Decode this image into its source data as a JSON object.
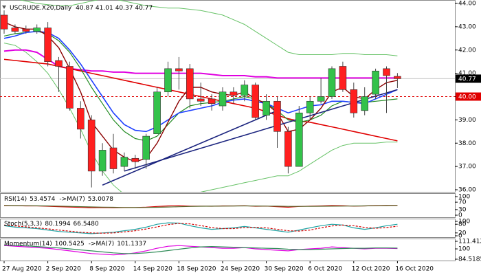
{
  "chart_data": [
    {
      "type": "candlestick",
      "title": "USCRUDE.X20,Daily",
      "categories": [
        "27 Aug 2020",
        null,
        null,
        null,
        "2 Sep 2020",
        null,
        null,
        null,
        "8 Sep 2020",
        null,
        null,
        null,
        "14 Sep 2020",
        null,
        null,
        null,
        "18 Sep 2020",
        null,
        null,
        null,
        "24 Sep 2020",
        null,
        null,
        null,
        "30 Sep 2020",
        null,
        null,
        null,
        "6 Oct 2020",
        null,
        null,
        null,
        "12 Oct 2020",
        null,
        null,
        null,
        "16 Oct 2020"
      ],
      "open": [
        43.5,
        42.95,
        42.9,
        42.8,
        42.95,
        41.55,
        41.3,
        39.5,
        39.0,
        36.8,
        37.8,
        37.0,
        37.35,
        37.3,
        38.4,
        40.2,
        41.2,
        41.2,
        39.9,
        39.9,
        39.6,
        40.2,
        40.05,
        40.5,
        39.2,
        39.8,
        38.5,
        37.0,
        39.3,
        39.8,
        40.0,
        41.3,
        40.3,
        39.4,
        40.1,
        41.2,
        40.87
      ],
      "high": [
        43.7,
        43.1,
        43.05,
        43.1,
        43.2,
        41.7,
        41.5,
        39.8,
        39.2,
        38.0,
        38.4,
        37.6,
        37.5,
        38.4,
        40.4,
        41.5,
        41.7,
        41.4,
        40.6,
        40.1,
        40.4,
        40.4,
        40.7,
        40.6,
        40.1,
        40.0,
        38.7,
        39.6,
        40.0,
        40.8,
        41.3,
        41.5,
        40.6,
        40.4,
        41.2,
        41.3,
        41.01
      ],
      "low": [
        42.7,
        42.7,
        42.7,
        42.7,
        41.3,
        40.2,
        39.4,
        38.2,
        36.1,
        36.6,
        36.7,
        36.8,
        36.9,
        36.9,
        38.4,
        40.0,
        40.3,
        39.5,
        39.6,
        39.4,
        39.4,
        39.7,
        39.8,
        39.0,
        39.0,
        37.8,
        36.7,
        37.0,
        39.0,
        39.7,
        39.9,
        40.2,
        39.1,
        39.2,
        39.9,
        39.3,
        40.37
      ],
      "close": [
        42.9,
        42.8,
        42.8,
        42.95,
        41.5,
        41.3,
        39.5,
        38.6,
        36.8,
        37.7,
        36.9,
        37.4,
        37.2,
        38.3,
        40.2,
        41.2,
        41.1,
        39.9,
        39.8,
        39.7,
        40.2,
        40.05,
        40.5,
        39.1,
        39.8,
        38.5,
        37.0,
        39.3,
        39.8,
        40.0,
        41.2,
        40.3,
        39.3,
        40.0,
        41.1,
        40.9,
        40.77
      ],
      "up_color": "#33c24a",
      "down_color": "#ff1f1f",
      "series": [
        {
          "color": "#66c266",
          "width": 1,
          "values": [
            44.3,
            44.2,
            44.1,
            44.0,
            43.95,
            43.9,
            43.9,
            44.0,
            44.1,
            44.2,
            44.2,
            44.1,
            44.0,
            43.9,
            43.85,
            43.8,
            43.8,
            43.75,
            43.7,
            43.6,
            43.5,
            43.3,
            43.1,
            42.8,
            42.5,
            42.2,
            41.9,
            41.8,
            41.8,
            41.8,
            41.8,
            41.85,
            41.85,
            41.8,
            41.8,
            41.8,
            41.75
          ]
        },
        {
          "color": "#66c266",
          "width": 1,
          "values": [
            42.3,
            42.2,
            41.9,
            41.5,
            41.0,
            40.3,
            39.5,
            38.6,
            37.6,
            36.8,
            36.2,
            35.8,
            35.6,
            35.5,
            35.5,
            35.6,
            35.7,
            35.8,
            35.9,
            36.0,
            36.1,
            36.2,
            36.3,
            36.4,
            36.5,
            36.6,
            36.6,
            36.8,
            37.1,
            37.4,
            37.7,
            37.9,
            38.0,
            38.0,
            38.0,
            38.05,
            38.05
          ]
        },
        {
          "color": "#e000e0",
          "width": 2,
          "values": [
            41.95,
            42.0,
            42.0,
            41.9,
            41.6,
            41.3,
            41.2,
            41.15,
            41.1,
            41.1,
            41.05,
            41.05,
            41.0,
            41.0,
            41.0,
            41.0,
            41.0,
            41.0,
            41.0,
            40.95,
            40.9,
            40.9,
            40.9,
            40.85,
            40.85,
            40.8,
            40.8,
            40.8,
            40.8,
            40.8,
            40.8,
            40.8,
            40.8,
            40.8,
            40.8,
            40.8,
            40.8
          ]
        },
        {
          "color": "#e00000",
          "width": 1.6,
          "values": [
            41.6,
            41.55,
            41.5,
            41.45,
            41.4,
            41.3,
            41.2,
            41.1,
            41.0,
            40.9,
            40.8,
            40.7,
            40.6,
            40.5,
            40.4,
            40.3,
            40.2,
            40.1,
            40.0,
            39.9,
            39.8,
            39.7,
            39.6,
            39.5,
            39.35,
            39.2,
            39.05,
            38.95,
            38.9,
            38.8,
            38.7,
            38.6,
            38.5,
            38.4,
            38.3,
            38.2,
            38.1
          ]
        },
        {
          "color": "#228b22",
          "width": 1.2,
          "values": [
            42.6,
            42.7,
            42.75,
            42.8,
            42.7,
            42.4,
            41.9,
            41.2,
            40.4,
            39.7,
            39.0,
            38.5,
            38.2,
            38.1,
            38.3,
            38.8,
            39.3,
            39.6,
            39.7,
            39.75,
            39.8,
            39.9,
            40.0,
            39.9,
            39.7,
            39.4,
            39.0,
            38.9,
            39.0,
            39.2,
            39.6,
            39.8,
            39.75,
            39.75,
            39.8,
            39.85,
            39.9
          ]
        },
        {
          "color": "#1e40ff",
          "width": 1.6,
          "values": [
            42.5,
            42.6,
            42.75,
            42.8,
            42.75,
            42.5,
            42.0,
            41.4,
            40.7,
            40.0,
            39.3,
            38.8,
            38.55,
            38.5,
            38.7,
            39.0,
            39.3,
            39.4,
            39.5,
            39.6,
            39.75,
            39.85,
            39.9,
            39.8,
            39.7,
            39.5,
            39.3,
            39.45,
            39.6,
            39.65,
            39.8,
            39.8,
            39.75,
            39.7,
            39.9,
            40.1,
            40.3
          ]
        },
        {
          "color": "#8b0000",
          "width": 1.4,
          "values": [
            43.2,
            43.0,
            42.9,
            42.9,
            42.6,
            42.1,
            41.2,
            40.2,
            38.9,
            38.3,
            37.7,
            37.4,
            37.2,
            37.35,
            38.0,
            38.9,
            39.8,
            40.4,
            40.4,
            40.2,
            40.1,
            40.05,
            40.2,
            39.9,
            39.7,
            39.3,
            38.5,
            38.6,
            39.0,
            39.5,
            40.2,
            40.4,
            40.0,
            39.9,
            40.3,
            40.6,
            40.7
          ]
        }
      ],
      "trendlines": [
        {
          "color": "#1a237e",
          "x": [
            9,
            25
          ],
          "y": [
            36.2,
            39.4
          ]
        },
        {
          "color": "#1a237e",
          "x": [
            11,
            36
          ],
          "y": [
            36.8,
            40.3
          ]
        }
      ],
      "price_lines": [
        {
          "value": 40.77,
          "color": "#000000",
          "dash": false
        },
        {
          "value": {
            "value": 40,
            "label": "40.00"
          },
          "color": "#e00000",
          "dash": true
        }
      ],
      "ylim": [
        36,
        44
      ],
      "yticks": [
        {
          "value": 36,
          "label": "36.00"
        },
        {
          "value": 37,
          "label": "37.00"
        },
        {
          "value": 38,
          "label": "38.00"
        },
        {
          "value": 39,
          "label": "39.00"
        },
        {
          "value": 40,
          "label": "40.00"
        },
        {
          "value": 41,
          "label": "41.00"
        },
        {
          "value": 42,
          "label": "42.00"
        },
        {
          "value": 43,
          "label": "43.00"
        },
        {
          "value": 44,
          "label": "44.00"
        }
      ]
    },
    {
      "type": "line",
      "ylim": [
        0,
        100
      ],
      "yticks": [
        0,
        30,
        70,
        100
      ],
      "series": [
        {
          "name": "RSI(14)",
          "color": "#d40000",
          "values": [
            52,
            51,
            50,
            50,
            48,
            46,
            44,
            42,
            40,
            41,
            40,
            41,
            41,
            43,
            47,
            50,
            51,
            49,
            49,
            48,
            50,
            50,
            51,
            48,
            49,
            46,
            43,
            47,
            49,
            50,
            52,
            51,
            49,
            50,
            52,
            53,
            53.4574
          ]
        },
        {
          "name": "->MA(7)",
          "color": "#556b2f",
          "values": [
            53,
            52,
            51,
            50.5,
            50,
            49,
            47.5,
            46,
            44.5,
            43.5,
            42.5,
            41.5,
            41,
            41.5,
            42.5,
            44,
            45.5,
            47,
            48,
            48.5,
            49,
            49.5,
            50,
            49.5,
            49,
            48.5,
            47.5,
            47.5,
            47.5,
            48,
            48.5,
            49,
            49.5,
            50,
            51,
            52,
            53.0078
          ]
        }
      ]
    },
    {
      "type": "line",
      "ylim": [
        0,
        100
      ],
      "yticks": [
        0,
        20,
        80,
        100
      ],
      "series": [
        {
          "name": "Stoch(5,3,3)",
          "color": "#1fa3a3",
          "values": [
            70,
            60,
            55,
            50,
            40,
            30,
            25,
            20,
            15,
            20,
            25,
            35,
            45,
            60,
            80,
            90,
            88,
            70,
            55,
            45,
            50,
            55,
            65,
            55,
            45,
            35,
            25,
            40,
            55,
            70,
            80,
            75,
            55,
            45,
            55,
            70,
            80.1994
          ]
        },
        {
          "color": "#d40000",
          "dash": true,
          "values": [
            75,
            68,
            62,
            55,
            48,
            40,
            32,
            25,
            20,
            18,
            20,
            27,
            35,
            47,
            62,
            77,
            86,
            83,
            71,
            57,
            50,
            50,
            57,
            58,
            55,
            45,
            35,
            33,
            40,
            55,
            68,
            75,
            70,
            58,
            52,
            57,
            66.548
          ],
          "value_labels": [
            null,
            null,
            null,
            null,
            null,
            null,
            null,
            null,
            null,
            null,
            null,
            null,
            null,
            null,
            null,
            null,
            null,
            null,
            null,
            null,
            null,
            null,
            null,
            null,
            null,
            null,
            null,
            null,
            null,
            null,
            null,
            null,
            null,
            null,
            null,
            null,
            "66.5480"
          ]
        }
      ]
    },
    {
      "type": "line",
      "ylim": [
        84.5185,
        111.4127
      ],
      "yticks": [
        84.5185,
        100,
        111.4127
      ],
      "series": [
        {
          "name": "Momentum(14)",
          "color": "#e000e0",
          "values": [
            105,
            104,
            103,
            102,
            101,
            99,
            97,
            95,
            93,
            92,
            91,
            92,
            94,
            97,
            101,
            104,
            105,
            104,
            103,
            102,
            101,
            101,
            102,
            100,
            99,
            98,
            97,
            99,
            100,
            101,
            103,
            102,
            101,
            100,
            101,
            101,
            100.5425
          ]
        },
        {
          "name": "->MA(7)",
          "color": "#2e8b57",
          "values": [
            106,
            105,
            104.5,
            103.5,
            102.5,
            101.5,
            100,
            98.5,
            97,
            95.5,
            94,
            93,
            93,
            94,
            95.5,
            97.5,
            99.5,
            101.5,
            103,
            103.5,
            103,
            102.5,
            102,
            101.5,
            101,
            100.5,
            99.5,
            99,
            99,
            99.5,
            100,
            100.5,
            101,
            101,
            101.5,
            101.5,
            101.1337
          ]
        }
      ]
    }
  ]
}
